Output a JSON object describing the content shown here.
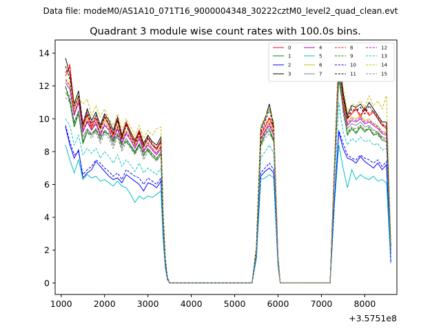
{
  "chart_data": {
    "type": "line",
    "supertitle": "Data file: modeM0/AS1A10_071T16_9000004348_30222cztM0_level2_quad_clean.evt",
    "title": "Quadrant 3 module wise count rates with 100.0s bins.",
    "xlabel": "",
    "ylabel": "",
    "x_offset_label": "+3.5751e8",
    "xlim": [
      860,
      8740
    ],
    "ylim": [
      -0.7,
      14.8
    ],
    "xticks": [
      1000,
      2000,
      3000,
      4000,
      5000,
      6000,
      7000,
      8000
    ],
    "yticks": [
      0,
      2,
      4,
      6,
      8,
      10,
      12,
      14
    ],
    "legend_position": "top-right",
    "x": [
      1100,
      1200,
      1300,
      1400,
      1500,
      1600,
      1700,
      1800,
      1900,
      2000,
      2100,
      2200,
      2300,
      2400,
      2500,
      2600,
      2700,
      2800,
      2900,
      3000,
      3100,
      3200,
      3300,
      3350,
      3400,
      3450,
      3500,
      3600,
      3800,
      4000,
      4500,
      5000,
      5400,
      5500,
      5600,
      5700,
      5800,
      5900,
      6000,
      6050,
      6100,
      6200,
      6500,
      7000,
      7200,
      7300,
      7400,
      7500,
      7600,
      7700,
      7800,
      7900,
      8000,
      8100,
      8200,
      8300,
      8400,
      8500,
      8600
    ],
    "series": [
      {
        "name": "0",
        "color": "#ff0000",
        "dash": "solid",
        "values": [
          12.6,
          13.2,
          10.6,
          11.4,
          9.6,
          10.2,
          9.5,
          10.0,
          9.4,
          10.1,
          9.6,
          9.0,
          9.9,
          8.8,
          9.7,
          9.0,
          8.6,
          9.2,
          8.3,
          8.8,
          8.4,
          8.1,
          8.6,
          4.0,
          1.4,
          0.3,
          0,
          0,
          0,
          0,
          0,
          0,
          0,
          2.1,
          9.0,
          9.5,
          10.0,
          9.4,
          1.5,
          0,
          0,
          0,
          0,
          0,
          0,
          7.1,
          13.6,
          11.2,
          10.0,
          10.3,
          10.6,
          10.1,
          10.6,
          10.2,
          10.4,
          10.0,
          9.6,
          9.4,
          2.2
        ]
      },
      {
        "name": "1",
        "color": "#008000",
        "dash": "solid",
        "values": [
          12.0,
          11.0,
          9.5,
          10.3,
          8.5,
          9.2,
          9.0,
          9.3,
          8.8,
          9.2,
          9.0,
          8.6,
          9.0,
          8.4,
          8.6,
          8.3,
          7.9,
          8.4,
          7.8,
          8.1,
          7.7,
          7.5,
          7.8,
          3.6,
          1.3,
          0.3,
          0,
          0,
          0,
          0,
          0,
          0,
          0,
          2.0,
          8.4,
          9.0,
          9.3,
          8.6,
          1.4,
          0,
          0,
          0,
          0,
          0,
          0,
          6.7,
          12.5,
          10.6,
          9.0,
          9.4,
          9.1,
          9.5,
          9.2,
          9.4,
          9.0,
          9.1,
          8.7,
          8.6,
          1.8
        ]
      },
      {
        "name": "2",
        "color": "#0000ff",
        "dash": "solid",
        "values": [
          9.5,
          8.4,
          7.6,
          8.1,
          6.4,
          6.7,
          6.9,
          7.4,
          7.1,
          6.8,
          6.5,
          6.3,
          6.4,
          6.1,
          6.6,
          6.4,
          6.2,
          6.0,
          5.6,
          6.1,
          6.0,
          5.8,
          6.2,
          2.9,
          1.0,
          0.2,
          0,
          0,
          0,
          0,
          0,
          0,
          0,
          1.6,
          6.5,
          6.8,
          7.0,
          6.7,
          1.1,
          0,
          0,
          0,
          0,
          0,
          0,
          5.0,
          9.2,
          8.2,
          7.6,
          7.5,
          7.3,
          7.7,
          7.4,
          7.2,
          7.0,
          7.3,
          6.9,
          7.2,
          1.3
        ]
      },
      {
        "name": "3",
        "color": "#000000",
        "dash": "solid",
        "values": [
          13.7,
          12.7,
          10.9,
          11.7,
          9.7,
          10.6,
          9.9,
          10.4,
          9.6,
          10.3,
          9.9,
          9.3,
          10.1,
          9.0,
          9.8,
          9.2,
          8.7,
          9.3,
          8.5,
          9.0,
          8.6,
          8.4,
          8.9,
          4.2,
          1.5,
          0.3,
          0,
          0,
          0,
          0,
          0,
          0,
          0,
          2.2,
          9.4,
          10.0,
          10.9,
          9.6,
          1.6,
          0,
          0,
          0,
          0,
          0,
          0,
          7.3,
          14.1,
          11.6,
          10.2,
          10.8,
          10.7,
          10.9,
          10.5,
          11.0,
          10.6,
          10.2,
          9.8,
          9.8,
          2.3
        ]
      },
      {
        "name": "4",
        "color": "#bf00bf",
        "dash": "solid",
        "values": [
          12.2,
          11.8,
          10.2,
          11.0,
          9.2,
          9.8,
          9.3,
          9.7,
          9.0,
          9.6,
          9.3,
          8.7,
          9.4,
          8.5,
          9.1,
          8.7,
          8.2,
          8.8,
          8.0,
          8.4,
          8.1,
          7.8,
          8.2,
          3.8,
          1.3,
          0.3,
          0,
          0,
          0,
          0,
          0,
          0,
          0,
          2.0,
          8.7,
          9.2,
          9.6,
          9.0,
          1.4,
          0,
          0,
          0,
          0,
          0,
          0,
          6.9,
          13.0,
          10.8,
          9.6,
          9.9,
          9.8,
          10.0,
          9.7,
          9.8,
          9.6,
          9.4,
          9.1,
          9.0,
          2.0
        ]
      },
      {
        "name": "5",
        "color": "#00bfbf",
        "dash": "solid",
        "values": [
          8.4,
          7.5,
          6.7,
          7.5,
          6.3,
          6.6,
          6.4,
          6.5,
          6.2,
          6.3,
          6.1,
          5.9,
          6.2,
          5.9,
          5.8,
          5.4,
          4.9,
          5.3,
          5.1,
          5.3,
          5.2,
          5.4,
          5.6,
          2.7,
          0.9,
          0.2,
          0,
          0,
          0,
          0,
          0,
          0,
          0,
          1.5,
          6.3,
          6.4,
          6.6,
          6.4,
          1.0,
          0,
          0,
          0,
          0,
          0,
          0,
          4.8,
          8.4,
          7.0,
          5.8,
          6.9,
          6.3,
          6.6,
          6.4,
          6.3,
          6.5,
          6.2,
          6.3,
          6.1,
          1.2
        ]
      },
      {
        "name": "6",
        "color": "#bfbf00",
        "dash": "solid",
        "values": [
          12.3,
          12.1,
          10.4,
          11.1,
          9.4,
          10.0,
          9.4,
          9.8,
          9.2,
          9.9,
          9.5,
          8.9,
          9.6,
          8.7,
          9.3,
          8.9,
          8.4,
          9.0,
          8.1,
          8.6,
          8.2,
          7.9,
          8.4,
          3.9,
          1.4,
          0.3,
          0,
          0,
          0,
          0,
          0,
          0,
          0,
          2.1,
          8.8,
          9.3,
          9.8,
          9.2,
          1.5,
          0,
          0,
          0,
          0,
          0,
          0,
          7.0,
          13.9,
          11.0,
          9.8,
          10.1,
          10.0,
          10.2,
          9.9,
          10.0,
          9.7,
          9.6,
          9.2,
          9.2,
          2.1
        ]
      },
      {
        "name": "7",
        "color": "#808080",
        "dash": "solid",
        "values": [
          11.6,
          11.2,
          9.8,
          10.5,
          8.9,
          9.4,
          9.0,
          9.4,
          8.7,
          9.3,
          9.0,
          8.4,
          9.1,
          8.2,
          8.8,
          8.4,
          8.0,
          8.5,
          7.7,
          8.2,
          7.9,
          7.6,
          8.0,
          3.7,
          1.3,
          0.3,
          0,
          0,
          0,
          0,
          0,
          0,
          0,
          2.0,
          8.5,
          9.0,
          9.3,
          8.8,
          1.4,
          0,
          0,
          0,
          0,
          0,
          0,
          6.8,
          14.1,
          10.5,
          9.4,
          9.7,
          9.6,
          9.8,
          9.5,
          9.6,
          9.3,
          9.2,
          8.9,
          8.8,
          2.0
        ]
      },
      {
        "name": "8",
        "color": "#ff0000",
        "dash": "dashed",
        "values": [
          12.8,
          13.3,
          10.8,
          11.3,
          9.8,
          10.3,
          9.6,
          10.1,
          9.5,
          10.2,
          9.7,
          9.1,
          10.0,
          8.9,
          9.8,
          9.1,
          8.7,
          9.3,
          8.4,
          8.9,
          8.5,
          8.2,
          8.7,
          4.1,
          1.4,
          0.3,
          0,
          0,
          0,
          0,
          0,
          0,
          0,
          2.1,
          9.1,
          9.6,
          10.1,
          9.5,
          1.5,
          0,
          0,
          0,
          0,
          0,
          0,
          7.2,
          13.7,
          11.3,
          10.1,
          10.4,
          10.7,
          10.2,
          10.7,
          10.3,
          10.5,
          10.1,
          9.7,
          9.5,
          2.2
        ]
      },
      {
        "name": "9",
        "color": "#008000",
        "dash": "dashed",
        "values": [
          11.9,
          11.3,
          9.7,
          10.4,
          8.6,
          9.3,
          9.1,
          9.4,
          8.9,
          9.3,
          9.1,
          8.7,
          9.1,
          8.5,
          8.7,
          8.4,
          8.0,
          8.5,
          7.9,
          8.2,
          7.8,
          7.6,
          7.9,
          3.7,
          1.3,
          0.3,
          0,
          0,
          0,
          0,
          0,
          0,
          0,
          2.0,
          8.5,
          9.1,
          9.4,
          8.7,
          1.4,
          0,
          0,
          0,
          0,
          0,
          0,
          6.8,
          12.6,
          10.7,
          9.1,
          9.5,
          9.2,
          9.6,
          9.3,
          9.5,
          9.1,
          9.2,
          8.8,
          8.7,
          1.9
        ]
      },
      {
        "name": "10",
        "color": "#0000ff",
        "dash": "dashed",
        "values": [
          9.6,
          8.6,
          7.8,
          8.0,
          6.6,
          6.9,
          7.1,
          7.5,
          7.3,
          7.0,
          6.8,
          6.5,
          6.7,
          6.3,
          6.9,
          6.7,
          6.5,
          6.4,
          6.0,
          6.4,
          6.2,
          6.0,
          6.4,
          3.0,
          1.0,
          0.2,
          0,
          0,
          0,
          0,
          0,
          0,
          0,
          1.6,
          6.7,
          7.0,
          7.3,
          6.9,
          1.1,
          0,
          0,
          0,
          0,
          0,
          0,
          5.1,
          9.3,
          8.5,
          7.8,
          7.6,
          7.5,
          7.8,
          7.6,
          7.5,
          7.3,
          7.5,
          7.1,
          7.4,
          1.3
        ]
      },
      {
        "name": "11",
        "color": "#000000",
        "dash": "dashed",
        "values": [
          13.2,
          12.4,
          10.6,
          11.4,
          9.5,
          10.4,
          9.7,
          10.2,
          9.4,
          10.1,
          9.7,
          9.1,
          9.9,
          8.8,
          9.6,
          9.0,
          8.5,
          9.1,
          8.3,
          8.8,
          8.4,
          8.2,
          8.7,
          4.1,
          1.4,
          0.3,
          0,
          0,
          0,
          0,
          0,
          0,
          0,
          2.1,
          9.2,
          9.8,
          10.6,
          9.4,
          1.5,
          0,
          0,
          0,
          0,
          0,
          0,
          7.2,
          14.0,
          11.4,
          10.0,
          10.6,
          10.5,
          10.7,
          10.3,
          10.8,
          10.4,
          10.0,
          9.6,
          9.6,
          2.2
        ]
      },
      {
        "name": "12",
        "color": "#bf00bf",
        "dash": "dashed",
        "values": [
          12.4,
          12.0,
          10.3,
          11.1,
          9.3,
          9.9,
          9.4,
          9.8,
          9.1,
          9.7,
          9.4,
          8.8,
          9.5,
          8.6,
          9.2,
          8.8,
          8.3,
          8.9,
          8.1,
          8.5,
          8.2,
          7.9,
          8.3,
          3.9,
          1.3,
          0.3,
          0,
          0,
          0,
          0,
          0,
          0,
          0,
          2.0,
          8.8,
          9.3,
          9.7,
          9.1,
          1.4,
          0,
          0,
          0,
          0,
          0,
          0,
          7.0,
          13.1,
          10.9,
          9.7,
          10.0,
          9.9,
          10.1,
          9.8,
          9.9,
          9.7,
          9.5,
          9.2,
          9.1,
          2.0
        ]
      },
      {
        "name": "13",
        "color": "#00bfbf",
        "dash": "dashed",
        "values": [
          10.0,
          9.6,
          8.4,
          9.0,
          7.8,
          8.2,
          7.9,
          8.2,
          7.6,
          8.0,
          7.7,
          7.3,
          7.8,
          7.1,
          7.5,
          7.2,
          6.8,
          7.3,
          6.7,
          7.0,
          6.8,
          6.6,
          7.0,
          3.3,
          1.1,
          0.2,
          0,
          0,
          0,
          0,
          0,
          0,
          0,
          1.8,
          7.6,
          8.0,
          8.4,
          7.9,
          1.2,
          0,
          0,
          0,
          0,
          0,
          0,
          6.0,
          11.0,
          9.2,
          8.4,
          8.8,
          8.6,
          8.9,
          8.6,
          8.7,
          8.4,
          8.5,
          8.1,
          8.2,
          1.8
        ]
      },
      {
        "name": "14",
        "color": "#bfbf00",
        "dash": "dashed",
        "values": [
          12.4,
          12.3,
          10.6,
          11.3,
          10.9,
          11.2,
          10.2,
          10.8,
          10.1,
          10.6,
          10.0,
          9.6,
          10.3,
          9.3,
          10.0,
          9.5,
          9.0,
          9.6,
          8.8,
          9.3,
          9.0,
          9.4,
          9.5,
          4.4,
          1.5,
          0.3,
          0,
          0,
          0,
          0,
          0,
          0,
          0,
          2.2,
          9.6,
          10.1,
          10.6,
          9.8,
          1.6,
          0,
          0,
          0,
          0,
          0,
          0,
          7.5,
          14.1,
          11.9,
          10.4,
          10.9,
          10.8,
          11.1,
          10.7,
          11.4,
          10.8,
          11.1,
          10.6,
          11.4,
          2.4
        ]
      },
      {
        "name": "15",
        "color": "#808080",
        "dash": "dashed",
        "values": [
          11.3,
          11.0,
          9.6,
          10.3,
          8.7,
          9.2,
          8.8,
          9.2,
          8.5,
          9.1,
          8.8,
          8.2,
          8.9,
          8.0,
          8.6,
          8.2,
          7.8,
          8.3,
          7.5,
          8.0,
          7.7,
          7.4,
          7.8,
          3.6,
          1.3,
          0.3,
          0,
          0,
          0,
          0,
          0,
          0,
          0,
          1.9,
          8.3,
          8.8,
          9.1,
          8.6,
          1.4,
          0,
          0,
          0,
          0,
          0,
          0,
          6.6,
          13.6,
          10.3,
          9.2,
          9.5,
          9.4,
          9.6,
          9.3,
          9.4,
          9.1,
          9.0,
          8.7,
          8.6,
          1.9
        ]
      }
    ]
  }
}
